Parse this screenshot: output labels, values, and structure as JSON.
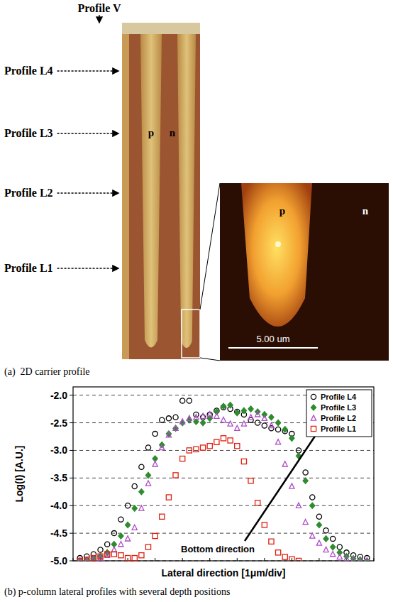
{
  "panel_a": {
    "profile_v": "Profile V",
    "profiles": [
      "Profile L4",
      "Profile L3",
      "Profile L2",
      "Profile L1"
    ],
    "region_labels": [
      "p",
      "n"
    ],
    "inset_labels": [
      "p",
      "n"
    ],
    "scale_bar": "5.00 um",
    "caption": "(a)  2D carrier profile"
  },
  "chart_data": {
    "type": "scatter",
    "title": "(b) p-column lateral profiles with several depth positions",
    "x_label": "Lateral direction [1μm/div]",
    "y_label": "Log(I) [A.U.]",
    "annotations": [
      "Bottom direction"
    ],
    "x": [
      0.25,
      0.5,
      0.75,
      1,
      1.25,
      1.5,
      1.75,
      2,
      2.25,
      2.5,
      2.75,
      3,
      3.25,
      3.5,
      3.75,
      4,
      4.25,
      4.5,
      4.75,
      5,
      5.25,
      5.5,
      5.75,
      6,
      6.25,
      6.5,
      6.75,
      7,
      7.25,
      7.5,
      7.75,
      8,
      8.25,
      8.5,
      8.75,
      9,
      9.25,
      9.5,
      9.75,
      10,
      10.25,
      10.5,
      10.75
    ],
    "xlim": [
      0,
      11
    ],
    "xticks": [
      0,
      1,
      2,
      3,
      4,
      5,
      6,
      7,
      8,
      9,
      10,
      11
    ],
    "ylim": [
      -5,
      -1.85
    ],
    "yticks": [
      {
        "value": -2,
        "label": "-2.0"
      },
      {
        "value": -2.5,
        "label": "-2.5"
      },
      {
        "value": -3,
        "label": "-3.0"
      },
      {
        "value": -3.5,
        "label": "-3.5"
      },
      {
        "value": -4,
        "label": "-4.0"
      },
      {
        "value": -4.5,
        "label": "-4.5"
      },
      {
        "value": -5,
        "label": "-5.0"
      }
    ],
    "grid": true,
    "legend": "upper right",
    "tick_labels": "y",
    "series": [
      {
        "name": "Profile L4",
        "color": "#000000",
        "marker": "circle",
        "values": [
          -4.95,
          -4.92,
          -4.88,
          -4.8,
          -4.7,
          -4.5,
          -4.25,
          -4.0,
          -3.65,
          -3.3,
          -2.95,
          -2.7,
          -2.45,
          -2.42,
          -2.4,
          -2.1,
          -2.1,
          -2.35,
          -2.4,
          -2.35,
          -2.28,
          -2.22,
          -2.25,
          -2.3,
          -2.35,
          -2.45,
          -2.5,
          -2.55,
          -2.6,
          -2.62,
          -2.65,
          -2.7,
          -3.0,
          -3.4,
          -3.85,
          -4.2,
          -4.45,
          -4.6,
          -4.75,
          -4.85,
          -4.9,
          -4.93,
          -4.95
        ]
      },
      {
        "name": "Profile L3",
        "color": "#2e8b2e",
        "marker": "diamond",
        "values": [
          -5.0,
          -4.98,
          -4.96,
          -4.92,
          -4.85,
          -4.7,
          -4.55,
          -4.35,
          -4.05,
          -3.75,
          -3.45,
          -3.15,
          -2.9,
          -2.7,
          -2.6,
          -2.5,
          -2.45,
          -2.48,
          -2.5,
          -2.42,
          -2.3,
          -2.2,
          -2.18,
          -2.32,
          -2.28,
          -2.25,
          -2.3,
          -2.35,
          -2.4,
          -2.5,
          -2.62,
          -2.78,
          -3.1,
          -3.55,
          -4.0,
          -4.35,
          -4.6,
          -4.75,
          -4.85,
          -4.92,
          -4.96,
          -4.98,
          -5.0
        ]
      },
      {
        "name": "Profile L2",
        "color": "#b04cc8",
        "marker": "triangle",
        "values": [
          -5.0,
          -5.0,
          -4.98,
          -4.95,
          -4.9,
          -4.8,
          -4.7,
          -4.6,
          -4.4,
          -4.05,
          -3.6,
          -3.25,
          -2.95,
          -2.72,
          -2.6,
          -2.48,
          -2.42,
          -2.4,
          -2.38,
          -2.35,
          -2.38,
          -2.45,
          -2.52,
          -2.6,
          -2.52,
          -2.4,
          -2.35,
          -2.42,
          -2.55,
          -2.85,
          -3.25,
          -3.65,
          -4.0,
          -4.3,
          -4.55,
          -4.68,
          -4.8,
          -4.88,
          -4.93,
          -4.96,
          -4.98,
          -5.0,
          -5.0
        ]
      },
      {
        "name": "Profile L1",
        "color": "#e02010",
        "marker": "square",
        "values": [
          -5.0,
          -4.98,
          -4.95,
          -4.92,
          -4.88,
          -4.88,
          -4.9,
          -4.95,
          -4.95,
          -4.9,
          -4.75,
          -4.55,
          -4.2,
          -3.85,
          -3.45,
          -3.15,
          -3.0,
          -2.98,
          -2.95,
          -2.92,
          -2.85,
          -2.78,
          -2.82,
          -2.92,
          -3.2,
          -3.55,
          -3.95,
          -4.35,
          -4.65,
          -4.85,
          -4.93,
          -4.97,
          -5.0,
          null,
          null,
          null,
          null,
          null,
          null,
          null,
          null,
          null,
          null
        ]
      }
    ]
  }
}
